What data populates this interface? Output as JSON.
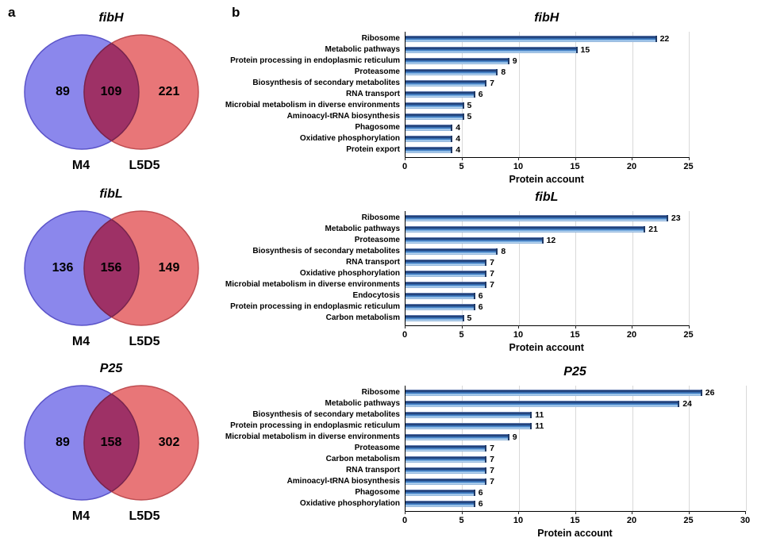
{
  "panel_a": {
    "label": "a",
    "colors": {
      "left_fill": "#8b87ec",
      "left_stroke": "#5b54c9",
      "right_fill": "#e87678",
      "right_stroke": "#bf4e52",
      "overlap_fill": "#9e3166",
      "overlap_stroke": "#78244e"
    }
  },
  "panel_b": {
    "label": "b",
    "bar_color": "#2e75b6"
  },
  "chart_data": [
    {
      "type": "venn",
      "title": "fibH",
      "sets": [
        "M4",
        "L5D5"
      ],
      "values": {
        "left_only": 89,
        "overlap": 109,
        "right_only": 221
      }
    },
    {
      "type": "venn",
      "title": "fibL",
      "sets": [
        "M4",
        "L5D5"
      ],
      "values": {
        "left_only": 136,
        "overlap": 156,
        "right_only": 149
      }
    },
    {
      "type": "venn",
      "title": "P25",
      "sets": [
        "M4",
        "L5D5"
      ],
      "values": {
        "left_only": 89,
        "overlap": 158,
        "right_only": 302
      }
    },
    {
      "type": "bar",
      "title": "fibH",
      "orientation": "horizontal",
      "xlabel": "Protein account",
      "xlim": [
        0,
        25
      ],
      "xticks": [
        0,
        5,
        10,
        15,
        20,
        25
      ],
      "grid": true,
      "categories": [
        "Ribosome",
        "Metabolic pathways",
        "Protein processing in endoplasmic reticulum",
        "Proteasome",
        "Biosynthesis of secondary metabolites",
        "RNA transport",
        "Microbial metabolism in diverse environments",
        "Aminoacyl-tRNA biosynthesis",
        "Phagosome",
        "Oxidative phosphorylation",
        "Protein export"
      ],
      "values": [
        22,
        15,
        9,
        8,
        7,
        6,
        5,
        5,
        4,
        4,
        4
      ]
    },
    {
      "type": "bar",
      "title": "fibL",
      "orientation": "horizontal",
      "xlabel": "Protein account",
      "xlim": [
        0,
        25
      ],
      "xticks": [
        0,
        5,
        10,
        15,
        20,
        25
      ],
      "grid": true,
      "categories": [
        "Ribosome",
        "Metabolic pathways",
        "Proteasome",
        "Biosynthesis of secondary metabolites",
        "RNA transport",
        "Oxidative phosphorylation",
        "Microbial metabolism in diverse environments",
        "Endocytosis",
        "Protein processing in endoplasmic reticulum",
        "Carbon metabolism"
      ],
      "values": [
        23,
        21,
        12,
        8,
        7,
        7,
        7,
        6,
        6,
        5
      ]
    },
    {
      "type": "bar",
      "title": "P25",
      "orientation": "horizontal",
      "xlabel": "Protein account",
      "xlim": [
        0,
        30
      ],
      "xticks": [
        0,
        5,
        10,
        15,
        20,
        25,
        30
      ],
      "grid": true,
      "categories": [
        "Ribosome",
        "Metabolic pathways",
        "Biosynthesis of secondary metabolites",
        "Protein processing in endoplasmic reticulum",
        "Microbial metabolism in diverse environments",
        "Proteasome",
        "Carbon metabolism",
        "RNA transport",
        "Aminoacyl-tRNA biosynthesis",
        "Phagosome",
        "Oxidative phosphorylation"
      ],
      "values": [
        26,
        24,
        11,
        11,
        9,
        7,
        7,
        7,
        7,
        6,
        6
      ]
    }
  ]
}
